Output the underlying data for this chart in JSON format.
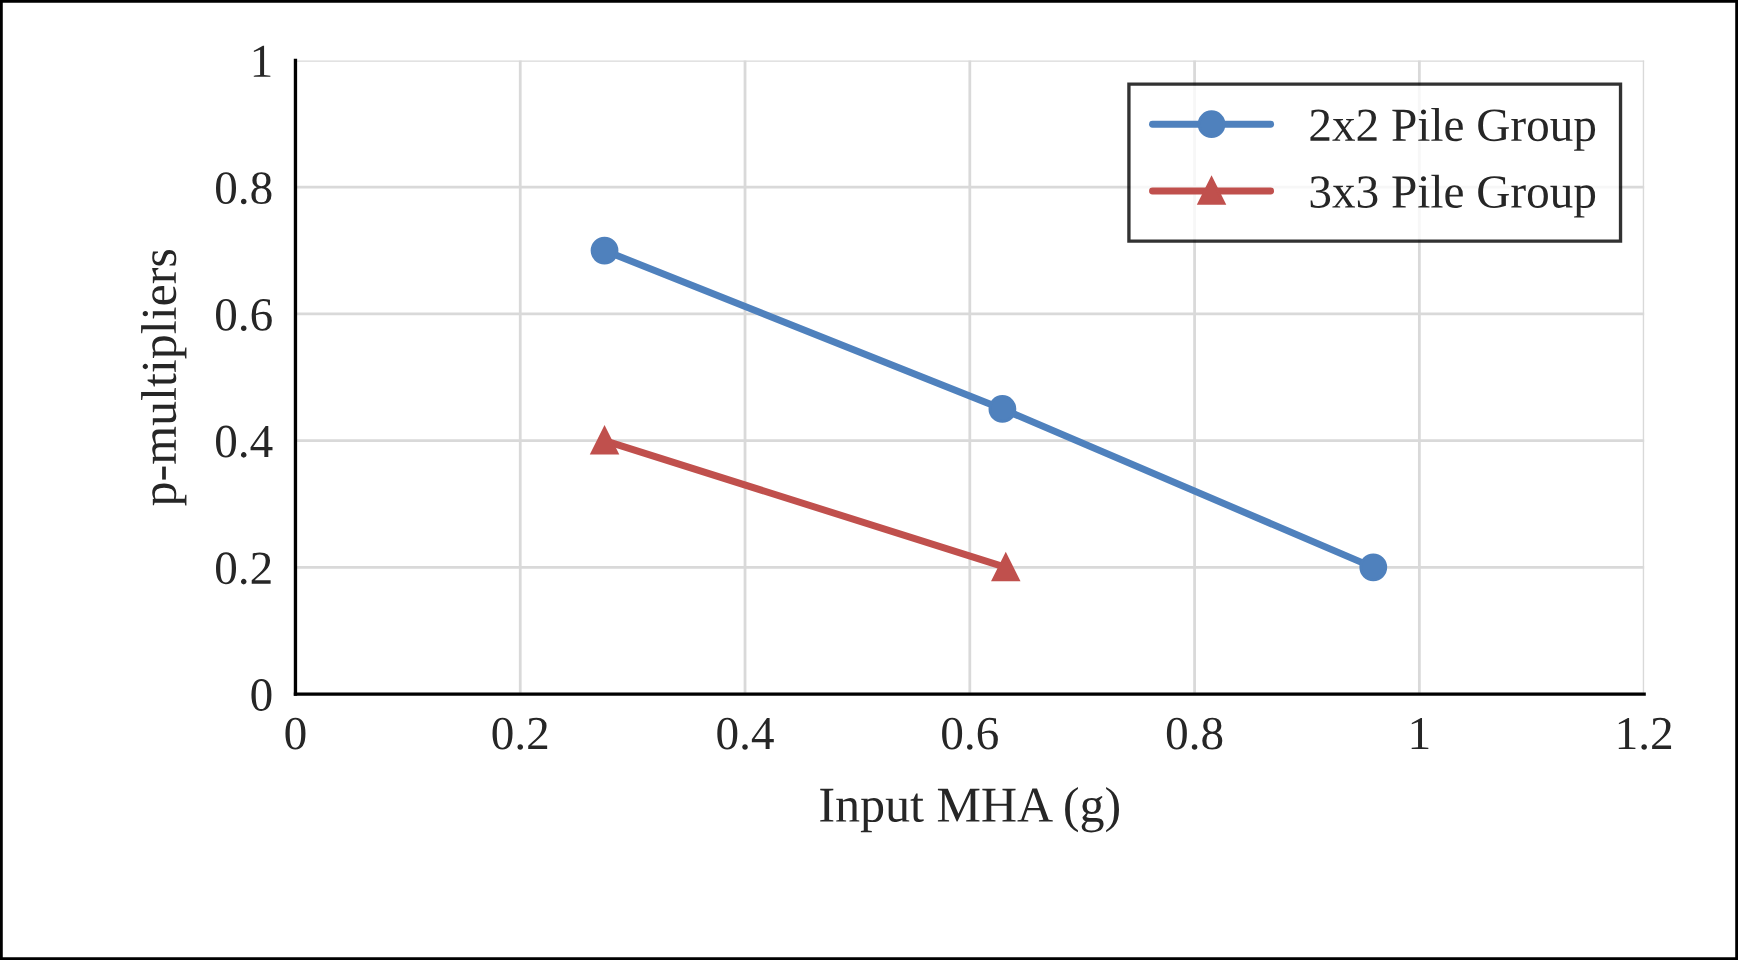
{
  "chart_data": {
    "type": "line",
    "xlabel": "Input MHA (g)",
    "ylabel": "p-multipliers",
    "series": [
      {
        "name": "2x2 Pile Group",
        "color": "#4f81bd",
        "marker": "circle",
        "x": [
          0.275,
          0.629,
          0.959
        ],
        "values": [
          0.7,
          0.45,
          0.2
        ]
      },
      {
        "name": "3x3 Pile Group",
        "color": "#c0504d",
        "marker": "triangle",
        "x": [
          0.275,
          0.632
        ],
        "values": [
          0.4,
          0.2
        ]
      }
    ],
    "xlim": [
      0,
      1.2
    ],
    "xticks": [
      0,
      0.2,
      0.4,
      0.6,
      0.8,
      1,
      1.2
    ],
    "ylim": [
      0,
      1
    ],
    "yticks": [
      0,
      0.2,
      0.4,
      0.6,
      0.8,
      1
    ],
    "grid": true,
    "legend": "top right",
    "line_style": "solid"
  }
}
